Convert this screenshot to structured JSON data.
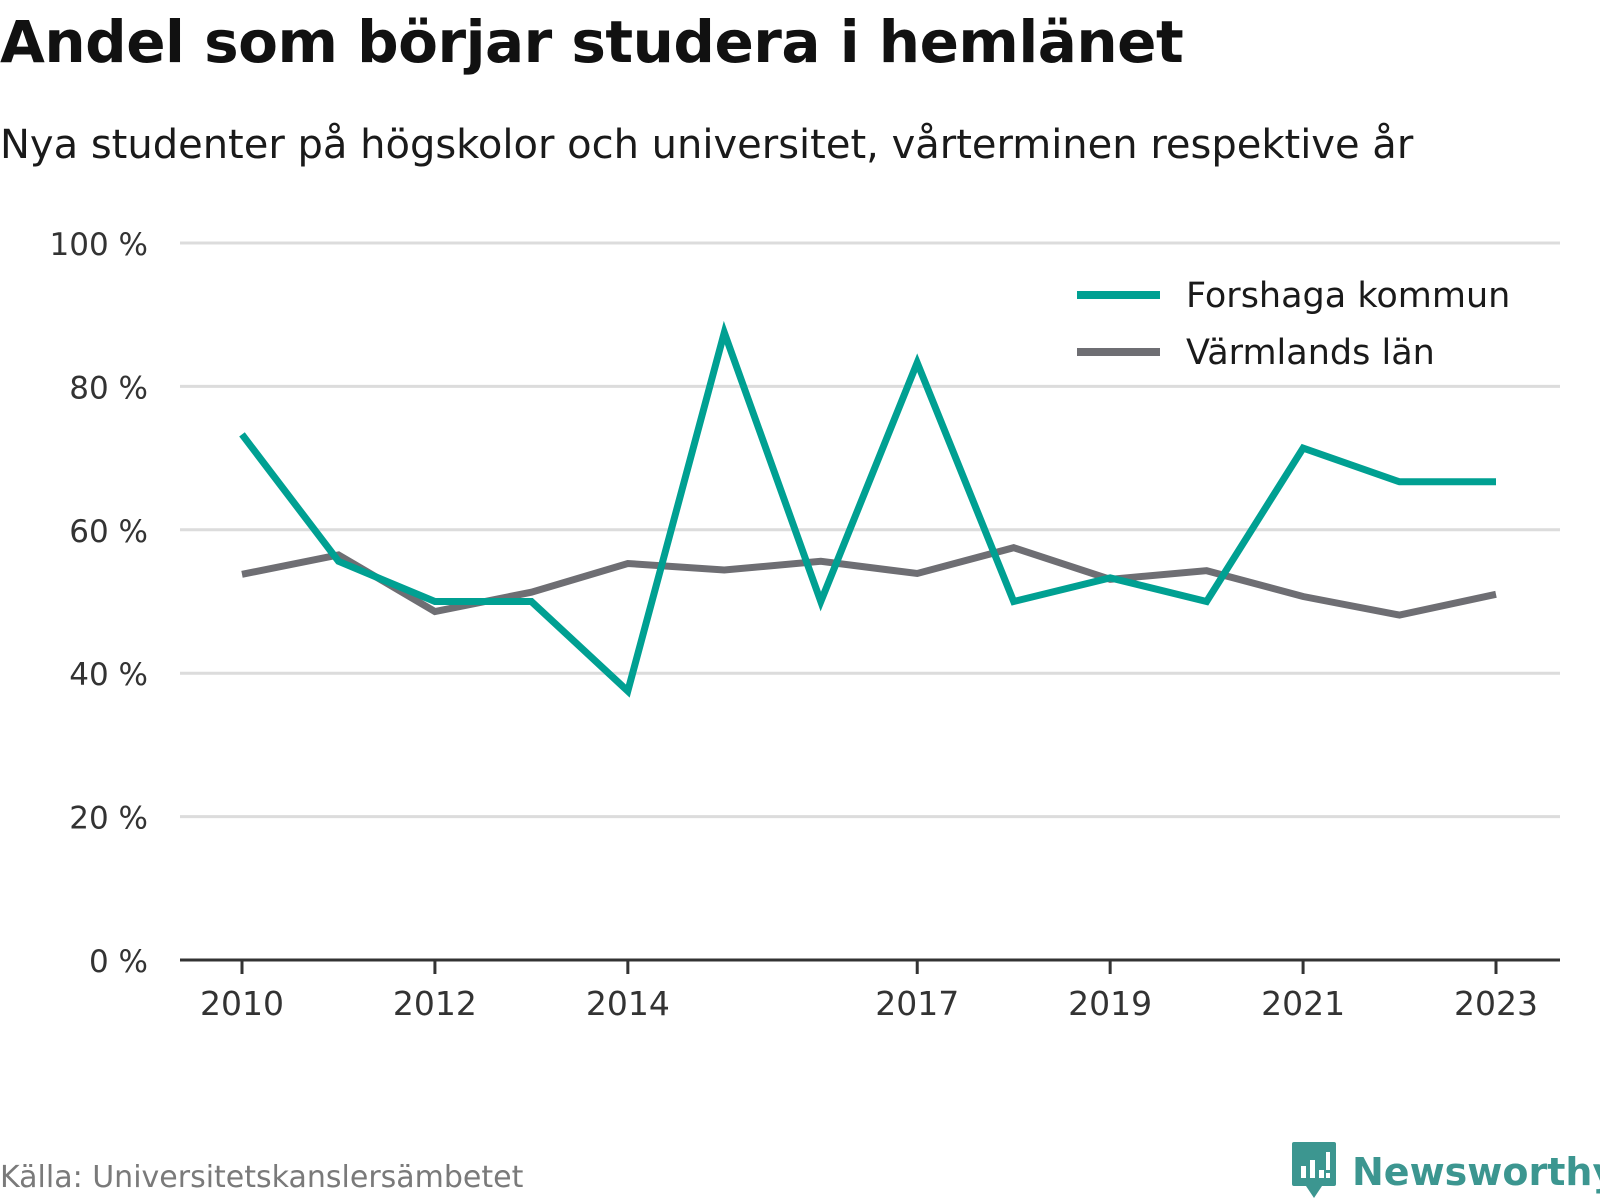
{
  "title": "Andel som börjar studera i hemlänet",
  "subtitle": "Nya studenter på högskolor och universitet, vårterminen respektive år",
  "source": "Källa: Universitetskanslersämbetet",
  "brand": {
    "name": "Newsworthy",
    "icon": "bar-chart-speech-bubble-icon",
    "color": "#3c9690"
  },
  "chart_data": {
    "type": "line",
    "title": "Andel som börjar studera i hemlänet",
    "subtitle": "Nya studenter på högskolor och universitet, vårterminen respektive år",
    "x": [
      2010,
      2011,
      2012,
      2013,
      2014,
      2015,
      2016,
      2017,
      2018,
      2019,
      2020,
      2021,
      2022,
      2023
    ],
    "x_ticks": [
      "2010",
      "2012",
      "2014",
      "2017",
      "2019",
      "2021",
      "2023"
    ],
    "y_ticks": [
      "0 %",
      "20 %",
      "40 %",
      "60 %",
      "80 %",
      "100 %"
    ],
    "ylim": [
      0,
      100
    ],
    "grid": true,
    "legend_position": "top-right",
    "series": [
      {
        "name": "Forshaga kommun",
        "color": "#00a092",
        "values": [
          73.3,
          55.6,
          50.0,
          50.0,
          37.5,
          87.5,
          50.0,
          83.3,
          50.0,
          53.3,
          50.0,
          71.4,
          66.7,
          66.7
        ]
      },
      {
        "name": "Värmlands län",
        "color": "#6e6e73",
        "values": [
          53.8,
          56.5,
          48.6,
          51.3,
          55.3,
          54.4,
          55.6,
          53.9,
          57.5,
          53.1,
          54.3,
          50.7,
          48.1,
          51.0
        ]
      }
    ]
  }
}
